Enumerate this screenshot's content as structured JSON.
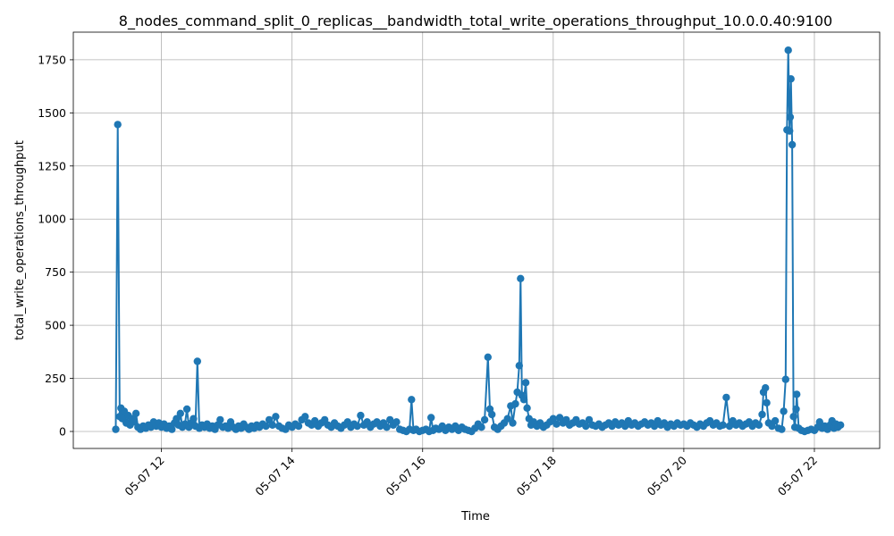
{
  "chart_data": {
    "type": "line",
    "title": "8_nodes_command_split_0_replicas__bandwidth_total_write_operations_throughput_10.0.0.40:9100",
    "xlabel": "Time",
    "ylabel": "total_write_operations_throughput",
    "x_tick_labels": [
      "05-07 12",
      "05-07 14",
      "05-07 16",
      "05-07 18",
      "05-07 20",
      "05-07 22"
    ],
    "x_tick_hours": [
      12,
      14,
      16,
      18,
      20,
      22
    ],
    "xlim_hours": [
      10.65,
      23.0
    ],
    "y_ticks": [
      0,
      250,
      500,
      750,
      1000,
      1250,
      1500,
      1750
    ],
    "ylim": [
      -80,
      1880
    ],
    "grid": true,
    "line_color": "#1f77b4",
    "marker": "circle",
    "x_unit": "hours on 05-07",
    "series": [
      {
        "points": [
          [
            11.3,
            10
          ],
          [
            11.33,
            1445
          ],
          [
            11.36,
            70
          ],
          [
            11.38,
            110
          ],
          [
            11.4,
            60
          ],
          [
            11.43,
            95
          ],
          [
            11.46,
            40
          ],
          [
            11.49,
            75
          ],
          [
            11.52,
            30
          ],
          [
            11.55,
            60
          ],
          [
            11.58,
            45
          ],
          [
            11.61,
            85
          ],
          [
            11.64,
            20
          ],
          [
            11.68,
            10
          ],
          [
            11.72,
            25
          ],
          [
            11.76,
            15
          ],
          [
            11.8,
            30
          ],
          [
            11.84,
            20
          ],
          [
            11.88,
            45
          ],
          [
            11.92,
            25
          ],
          [
            11.96,
            40
          ],
          [
            12.0,
            20
          ],
          [
            12.04,
            35
          ],
          [
            12.08,
            15
          ],
          [
            12.12,
            25
          ],
          [
            12.16,
            10
          ],
          [
            12.2,
            40
          ],
          [
            12.23,
            60
          ],
          [
            12.26,
            30
          ],
          [
            12.29,
            85
          ],
          [
            12.32,
            20
          ],
          [
            12.36,
            35
          ],
          [
            12.39,
            105
          ],
          [
            12.42,
            20
          ],
          [
            12.46,
            40
          ],
          [
            12.49,
            60
          ],
          [
            12.52,
            25
          ],
          [
            12.55,
            330
          ],
          [
            12.58,
            15
          ],
          [
            12.62,
            30
          ],
          [
            12.66,
            20
          ],
          [
            12.7,
            35
          ],
          [
            12.74,
            15
          ],
          [
            12.78,
            25
          ],
          [
            12.82,
            10
          ],
          [
            12.86,
            30
          ],
          [
            12.9,
            55
          ],
          [
            12.94,
            20
          ],
          [
            12.98,
            25
          ],
          [
            13.02,
            15
          ],
          [
            13.06,
            45
          ],
          [
            13.1,
            20
          ],
          [
            13.14,
            10
          ],
          [
            13.18,
            25
          ],
          [
            13.22,
            15
          ],
          [
            13.26,
            35
          ],
          [
            13.3,
            20
          ],
          [
            13.34,
            10
          ],
          [
            13.38,
            25
          ],
          [
            13.42,
            15
          ],
          [
            13.46,
            30
          ],
          [
            13.5,
            20
          ],
          [
            13.55,
            35
          ],
          [
            13.6,
            25
          ],
          [
            13.65,
            55
          ],
          [
            13.7,
            30
          ],
          [
            13.75,
            70
          ],
          [
            13.8,
            25
          ],
          [
            13.85,
            15
          ],
          [
            13.9,
            10
          ],
          [
            13.95,
            30
          ],
          [
            14.0,
            20
          ],
          [
            14.05,
            35
          ],
          [
            14.1,
            25
          ],
          [
            14.15,
            55
          ],
          [
            14.2,
            70
          ],
          [
            14.25,
            40
          ],
          [
            14.3,
            30
          ],
          [
            14.35,
            50
          ],
          [
            14.4,
            25
          ],
          [
            14.45,
            40
          ],
          [
            14.5,
            55
          ],
          [
            14.55,
            30
          ],
          [
            14.6,
            20
          ],
          [
            14.65,
            40
          ],
          [
            14.7,
            25
          ],
          [
            14.75,
            15
          ],
          [
            14.8,
            30
          ],
          [
            14.85,
            45
          ],
          [
            14.9,
            20
          ],
          [
            14.95,
            35
          ],
          [
            15.0,
            25
          ],
          [
            15.05,
            75
          ],
          [
            15.1,
            30
          ],
          [
            15.15,
            45
          ],
          [
            15.2,
            20
          ],
          [
            15.25,
            35
          ],
          [
            15.3,
            45
          ],
          [
            15.35,
            25
          ],
          [
            15.4,
            40
          ],
          [
            15.45,
            20
          ],
          [
            15.5,
            55
          ],
          [
            15.55,
            30
          ],
          [
            15.6,
            45
          ],
          [
            15.65,
            10
          ],
          [
            15.7,
            5
          ],
          [
            15.75,
            0
          ],
          [
            15.8,
            10
          ],
          [
            15.83,
            150
          ],
          [
            15.86,
            5
          ],
          [
            15.9,
            10
          ],
          [
            15.95,
            0
          ],
          [
            16.0,
            5
          ],
          [
            16.05,
            10
          ],
          [
            16.1,
            0
          ],
          [
            16.13,
            65
          ],
          [
            16.16,
            5
          ],
          [
            16.2,
            15
          ],
          [
            16.25,
            10
          ],
          [
            16.3,
            25
          ],
          [
            16.35,
            5
          ],
          [
            16.4,
            20
          ],
          [
            16.45,
            10
          ],
          [
            16.5,
            25
          ],
          [
            16.55,
            5
          ],
          [
            16.6,
            20
          ],
          [
            16.65,
            10
          ],
          [
            16.7,
            5
          ],
          [
            16.75,
            0
          ],
          [
            16.8,
            15
          ],
          [
            16.85,
            35
          ],
          [
            16.9,
            20
          ],
          [
            16.95,
            55
          ],
          [
            17.0,
            350
          ],
          [
            17.03,
            105
          ],
          [
            17.06,
            80
          ],
          [
            17.1,
            20
          ],
          [
            17.15,
            10
          ],
          [
            17.2,
            25
          ],
          [
            17.25,
            40
          ],
          [
            17.3,
            60
          ],
          [
            17.35,
            120
          ],
          [
            17.38,
            40
          ],
          [
            17.42,
            130
          ],
          [
            17.45,
            185
          ],
          [
            17.48,
            310
          ],
          [
            17.5,
            720
          ],
          [
            17.52,
            170
          ],
          [
            17.55,
            150
          ],
          [
            17.58,
            230
          ],
          [
            17.6,
            110
          ],
          [
            17.63,
            60
          ],
          [
            17.66,
            30
          ],
          [
            17.7,
            45
          ],
          [
            17.75,
            25
          ],
          [
            17.8,
            40
          ],
          [
            17.85,
            20
          ],
          [
            17.9,
            30
          ],
          [
            17.95,
            45
          ],
          [
            18.0,
            60
          ],
          [
            18.05,
            35
          ],
          [
            18.1,
            65
          ],
          [
            18.15,
            40
          ],
          [
            18.2,
            55
          ],
          [
            18.25,
            30
          ],
          [
            18.3,
            40
          ],
          [
            18.35,
            55
          ],
          [
            18.4,
            35
          ],
          [
            18.45,
            40
          ],
          [
            18.5,
            25
          ],
          [
            18.55,
            55
          ],
          [
            18.6,
            30
          ],
          [
            18.65,
            25
          ],
          [
            18.7,
            35
          ],
          [
            18.75,
            20
          ],
          [
            18.8,
            30
          ],
          [
            18.85,
            40
          ],
          [
            18.9,
            25
          ],
          [
            18.95,
            45
          ],
          [
            19.0,
            30
          ],
          [
            19.05,
            40
          ],
          [
            19.1,
            25
          ],
          [
            19.15,
            50
          ],
          [
            19.2,
            30
          ],
          [
            19.25,
            40
          ],
          [
            19.3,
            25
          ],
          [
            19.35,
            35
          ],
          [
            19.4,
            45
          ],
          [
            19.45,
            30
          ],
          [
            19.5,
            40
          ],
          [
            19.55,
            25
          ],
          [
            19.6,
            50
          ],
          [
            19.65,
            30
          ],
          [
            19.7,
            40
          ],
          [
            19.75,
            20
          ],
          [
            19.8,
            35
          ],
          [
            19.85,
            25
          ],
          [
            19.9,
            40
          ],
          [
            19.95,
            30
          ],
          [
            20.0,
            35
          ],
          [
            20.05,
            25
          ],
          [
            20.1,
            40
          ],
          [
            20.15,
            30
          ],
          [
            20.2,
            20
          ],
          [
            20.25,
            35
          ],
          [
            20.3,
            25
          ],
          [
            20.35,
            40
          ],
          [
            20.4,
            50
          ],
          [
            20.45,
            30
          ],
          [
            20.5,
            40
          ],
          [
            20.55,
            25
          ],
          [
            20.6,
            30
          ],
          [
            20.65,
            160
          ],
          [
            20.7,
            25
          ],
          [
            20.75,
            50
          ],
          [
            20.8,
            30
          ],
          [
            20.85,
            40
          ],
          [
            20.9,
            25
          ],
          [
            20.95,
            35
          ],
          [
            21.0,
            45
          ],
          [
            21.05,
            25
          ],
          [
            21.1,
            40
          ],
          [
            21.15,
            30
          ],
          [
            21.2,
            80
          ],
          [
            21.22,
            185
          ],
          [
            21.25,
            205
          ],
          [
            21.27,
            135
          ],
          [
            21.3,
            40
          ],
          [
            21.35,
            25
          ],
          [
            21.4,
            50
          ],
          [
            21.45,
            15
          ],
          [
            21.5,
            10
          ],
          [
            21.53,
            95
          ],
          [
            21.56,
            245
          ],
          [
            21.58,
            1420
          ],
          [
            21.6,
            1795
          ],
          [
            21.62,
            1415
          ],
          [
            21.63,
            1480
          ],
          [
            21.64,
            1660
          ],
          [
            21.66,
            1350
          ],
          [
            21.68,
            70
          ],
          [
            21.7,
            20
          ],
          [
            21.72,
            105
          ],
          [
            21.73,
            175
          ],
          [
            21.76,
            15
          ],
          [
            21.8,
            5
          ],
          [
            21.85,
            0
          ],
          [
            21.9,
            5
          ],
          [
            21.95,
            10
          ],
          [
            22.0,
            5
          ],
          [
            22.05,
            20
          ],
          [
            22.08,
            45
          ],
          [
            22.12,
            15
          ],
          [
            22.16,
            25
          ],
          [
            22.2,
            10
          ],
          [
            22.24,
            30
          ],
          [
            22.27,
            50
          ],
          [
            22.3,
            15
          ],
          [
            22.33,
            35
          ],
          [
            22.36,
            20
          ],
          [
            22.4,
            30
          ]
        ]
      }
    ]
  }
}
